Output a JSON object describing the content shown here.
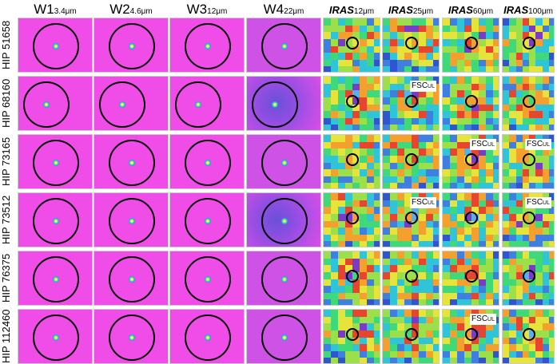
{
  "headers": [
    {
      "main": "W1",
      "sub": "3.4μm",
      "type": "wise"
    },
    {
      "main": "W2",
      "sub": "4.6μm",
      "type": "wise"
    },
    {
      "main": "W3",
      "sub": "12μm",
      "type": "wise"
    },
    {
      "main": "W4",
      "sub": "22μm",
      "type": "wise"
    },
    {
      "main": "IRAS",
      "sub": "12μm",
      "type": "iras"
    },
    {
      "main": "IRAS",
      "sub": "25μm",
      "type": "iras"
    },
    {
      "main": "IRAS",
      "sub": "60μm",
      "type": "iras"
    },
    {
      "main": "IRAS",
      "sub": "100μm",
      "type": "iras"
    }
  ],
  "rows": [
    {
      "label": "HIP 51658",
      "fsc": []
    },
    {
      "label": "HIP 68160",
      "fsc": [
        5
      ]
    },
    {
      "label": "HIP 73165",
      "fsc": [
        6,
        7
      ]
    },
    {
      "label": "HIP 73512",
      "fsc": [
        5,
        7
      ]
    },
    {
      "label": "HIP 76375",
      "fsc": []
    },
    {
      "label": "HIP 112460",
      "fsc": [
        6
      ]
    }
  ],
  "fsc_label": {
    "main": "FSC",
    "sub": "UL"
  },
  "colors": {
    "wise_bg": "#f04de8",
    "iras_bg": "#3b6dd9",
    "ring": "#000000"
  }
}
